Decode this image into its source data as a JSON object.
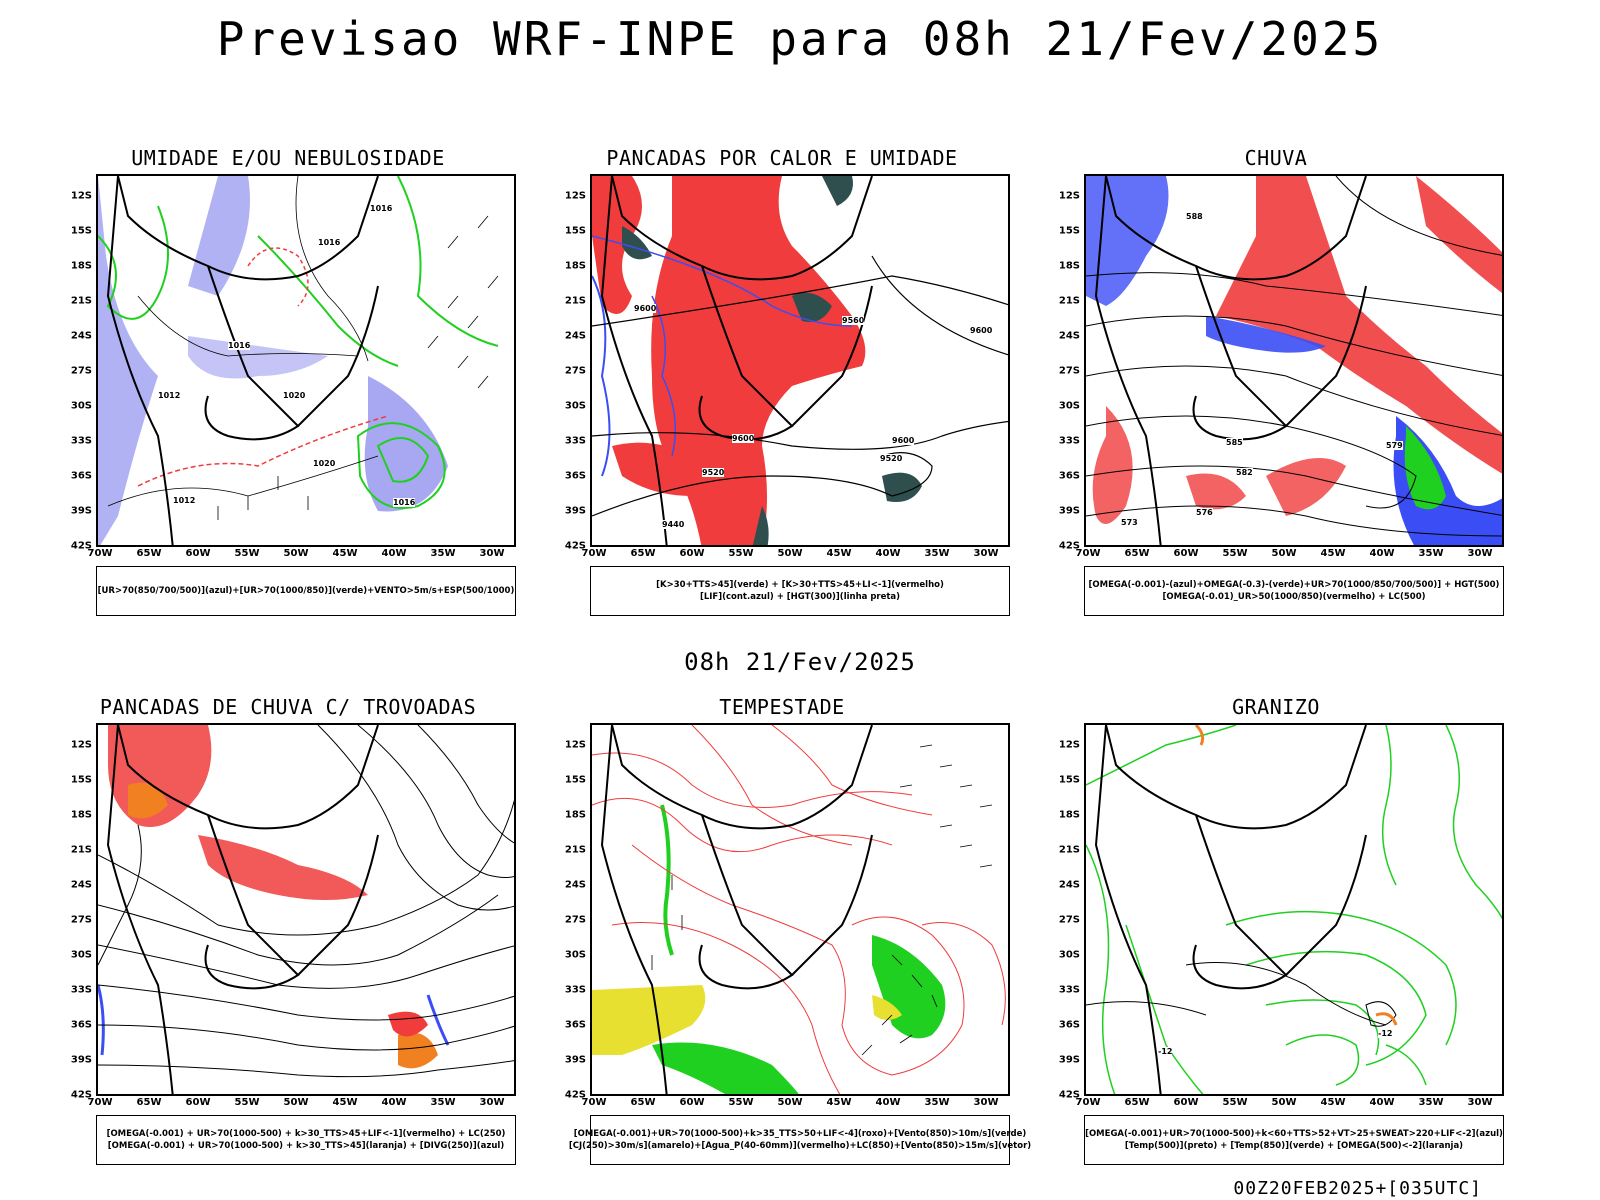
{
  "header": {
    "title": "Previsao WRF-INPE  para 08h 21/Fev/2025",
    "mid_timestamp": "08h 21/Fev/2025",
    "footer_stamp": "00Z20FEB2025+[035UTC]"
  },
  "axes": {
    "lat_labels": [
      "12S",
      "15S",
      "18S",
      "21S",
      "24S",
      "27S",
      "30S",
      "33S",
      "36S",
      "39S",
      "42S"
    ],
    "lon_labels": [
      "70W",
      "65W",
      "60W",
      "55W",
      "50W",
      "45W",
      "40W",
      "35W",
      "30W"
    ]
  },
  "panels": [
    {
      "title": "UMIDADE E/OU NEBULOSIDADE",
      "legend": [
        "[UR>70(850/700/500)](azul)+[UR>70(1000/850)](verde)+VENTO>5m/s+ESP(500/1000)"
      ]
    },
    {
      "title": "PANCADAS POR CALOR E UMIDADE",
      "legend": [
        "[K>30+TTS>45](verde)  +  [K>30+TTS>45+LI<-1](vermelho)",
        "[LIF](cont.azul)  +  [HGT(300)](linha preta)"
      ]
    },
    {
      "title": "CHUVA",
      "legend": [
        "[OMEGA(-0.001)-(azul)+OMEGA(-0.3)-(verde)+UR>70(1000/850/700/500)]  +  HGT(500)",
        "[OMEGA(-0.01)_UR>50(1000/850)(vermelho)  +  LC(500)"
      ]
    },
    {
      "title": "PANCADAS DE CHUVA C/ TROVOADAS",
      "legend": [
        "[OMEGA(-0.001) + UR>70(1000-500) + k>30_TTS>45+LIF<-1](vermelho) + LC(250)",
        "[OMEGA(-0.001) + UR>70(1000-500) + k>30_TTS>45](laranja) + [DIVG(250)](azul)"
      ]
    },
    {
      "title": "TEMPESTADE",
      "legend": [
        "[OMEGA(-0.001)+UR>70(1000-500)+k>35_TTS>50+LIF<-4](roxo)+[Vento(850)>10m/s](verde)",
        "[CJ(250)>30m/s](amarelo)+[Agua_P(40-60mm)](vermelho)+LC(850)+[Vento(850)>15m/s](vetor)"
      ]
    },
    {
      "title": "GRANIZO",
      "legend": [
        "[OMEGA(-0.001)+UR>70(1000-500)+k<60+TTS>52+VT>25+SWEAT>220+LIF<-2](azul)",
        "[Temp(500)](preto)  +  [Temp(850)](verde)  +  [OMEGA(500)<-2](laranja)"
      ]
    }
  ],
  "map_colors": {
    "coast": "#000000",
    "blue": "#3b4ef5",
    "lightblue": "#9d9ff0",
    "green": "#20d020",
    "red": "#f03c3c",
    "darkgreen": "#2f4f4f",
    "orange": "#f08020",
    "yellow": "#e8e030"
  },
  "contour_labels": {
    "p1": [
      "1016",
      "1016",
      "1012",
      "1020",
      "1016",
      "1020",
      "1012",
      "1016"
    ],
    "p2": [
      "9600",
      "9560",
      "9600",
      "9600",
      "9520",
      "9440",
      "9520",
      "9600"
    ],
    "p3": [
      "588",
      "585",
      "582",
      "579",
      "576",
      "573"
    ],
    "p6": [
      "-12",
      "-12"
    ]
  }
}
